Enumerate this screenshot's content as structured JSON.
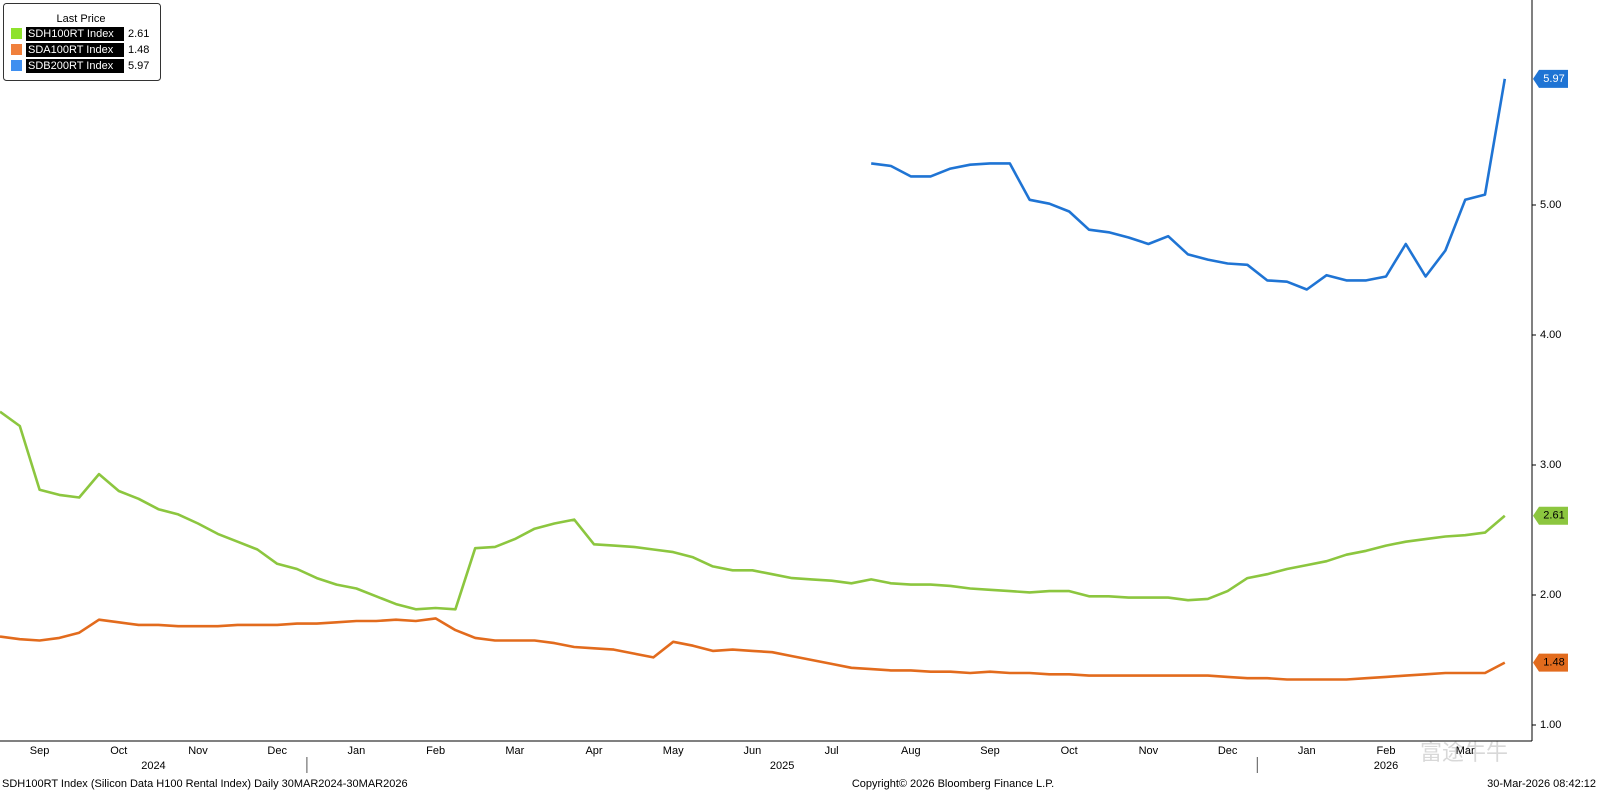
{
  "chart_data": {
    "type": "line",
    "legend_title": "Last Price",
    "footer_left": "SDH100RT Index (Silicon Data H100 Rental Index) Daily 30MAR2024-30MAR2026",
    "footer_center": "Copyright© 2026 Bloomberg Finance L.P.",
    "footer_right": "30-Mar-2026 08:42:12",
    "watermark": "富途牛牛",
    "categories": [
      null,
      null,
      "Sep",
      null,
      null,
      null,
      "Oct",
      null,
      null,
      null,
      "Nov",
      null,
      null,
      null,
      "Dec",
      null,
      null,
      null,
      "Jan",
      null,
      null,
      null,
      "Feb",
      null,
      null,
      null,
      "Mar",
      null,
      null,
      null,
      "Apr",
      null,
      null,
      null,
      "May",
      null,
      null,
      null,
      "Jun",
      null,
      null,
      null,
      "Jul",
      null,
      null,
      null,
      "Aug",
      null,
      null,
      null,
      "Sep",
      null,
      null,
      null,
      "Oct",
      null,
      null,
      null,
      "Nov",
      null,
      null,
      null,
      "Dec",
      null,
      null,
      null,
      "Jan",
      null,
      null,
      null,
      "Feb",
      null,
      null,
      null,
      "Mar",
      null,
      null
    ],
    "year_labels": [
      "2024",
      "2025",
      "2026"
    ],
    "series": [
      {
        "name": "SDH100RT Index",
        "color": "#8cc63f",
        "legend_color": "#8fe22c",
        "values": [
          3.41,
          3.3,
          2.81,
          2.77,
          2.75,
          2.93,
          2.8,
          2.74,
          2.66,
          2.62,
          2.55,
          2.47,
          2.41,
          2.35,
          2.24,
          2.2,
          2.13,
          2.08,
          2.05,
          1.99,
          1.93,
          1.89,
          1.9,
          1.89,
          2.36,
          2.37,
          2.43,
          2.51,
          2.55,
          2.58,
          2.39,
          2.38,
          2.37,
          2.35,
          2.33,
          2.29,
          2.22,
          2.19,
          2.19,
          2.16,
          2.13,
          2.12,
          2.11,
          2.09,
          2.12,
          2.09,
          2.08,
          2.08,
          2.07,
          2.05,
          2.04,
          2.03,
          2.02,
          2.03,
          2.03,
          1.99,
          1.99,
          1.98,
          1.98,
          1.98,
          1.96,
          1.97,
          2.03,
          2.13,
          2.16,
          2.2,
          2.23,
          2.26,
          2.31,
          2.34,
          2.38,
          2.41,
          2.43,
          2.45,
          2.46,
          2.48,
          2.61
        ]
      },
      {
        "name": "SDA100RT Index",
        "color": "#e26b1d",
        "legend_color": "#f0803c",
        "values": [
          1.68,
          1.66,
          1.65,
          1.67,
          1.71,
          1.81,
          1.79,
          1.77,
          1.77,
          1.76,
          1.76,
          1.76,
          1.77,
          1.77,
          1.77,
          1.78,
          1.78,
          1.79,
          1.8,
          1.8,
          1.81,
          1.8,
          1.82,
          1.73,
          1.67,
          1.65,
          1.65,
          1.65,
          1.63,
          1.6,
          1.59,
          1.58,
          1.55,
          1.52,
          1.64,
          1.61,
          1.57,
          1.58,
          1.57,
          1.56,
          1.53,
          1.5,
          1.47,
          1.44,
          1.43,
          1.42,
          1.42,
          1.41,
          1.41,
          1.4,
          1.41,
          1.4,
          1.4,
          1.39,
          1.39,
          1.38,
          1.38,
          1.38,
          1.38,
          1.38,
          1.38,
          1.38,
          1.37,
          1.36,
          1.36,
          1.35,
          1.35,
          1.35,
          1.35,
          1.36,
          1.37,
          1.38,
          1.39,
          1.4,
          1.4,
          1.4,
          1.48
        ]
      },
      {
        "name": "SDB200RT Index",
        "color": "#1f74d4",
        "legend_color": "#3f8ff0",
        "values": [
          null,
          null,
          null,
          null,
          null,
          null,
          null,
          null,
          null,
          null,
          null,
          null,
          null,
          null,
          null,
          null,
          null,
          null,
          null,
          null,
          null,
          null,
          null,
          null,
          null,
          null,
          null,
          null,
          null,
          null,
          null,
          null,
          null,
          null,
          null,
          null,
          null,
          null,
          null,
          null,
          null,
          null,
          null,
          null,
          5.32,
          5.3,
          5.22,
          5.22,
          5.28,
          5.31,
          5.32,
          5.32,
          5.04,
          5.01,
          4.95,
          4.81,
          4.79,
          4.75,
          4.7,
          4.76,
          4.62,
          4.58,
          4.55,
          4.54,
          4.42,
          4.41,
          4.35,
          4.46,
          4.42,
          4.42,
          4.45,
          4.7,
          4.45,
          4.65,
          5.04,
          5.08,
          5.97
        ]
      }
    ],
    "ylim": [
      0.877,
      6.577
    ],
    "yticks": [
      {
        "value": 1,
        "label": "1.00"
      },
      {
        "value": 2,
        "label": "2.00"
      },
      {
        "value": 3,
        "label": "3.00"
      },
      {
        "value": 4,
        "label": "4.00"
      },
      {
        "value": 5,
        "label": "5.00"
      }
    ],
    "axis_side": "right",
    "legend": "top-left"
  }
}
